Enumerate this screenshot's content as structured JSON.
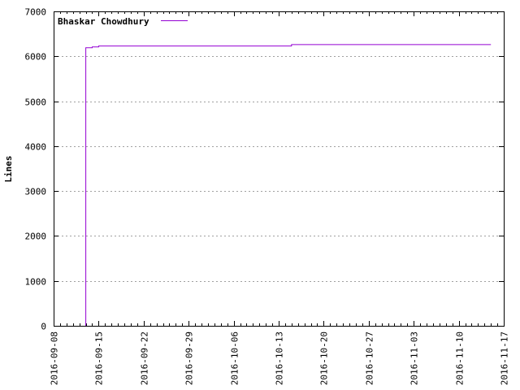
{
  "chart_data": {
    "type": "line",
    "ylabel": "Lines",
    "xlabel": "",
    "title": "",
    "x_axis_type": "date",
    "xlim": [
      "2016-09-08",
      "2016-11-17"
    ],
    "ylim": [
      0,
      7000
    ],
    "x_ticks": [
      "2016-09-08",
      "2016-09-15",
      "2016-09-22",
      "2016-09-29",
      "2016-10-06",
      "2016-10-13",
      "2016-10-20",
      "2016-10-27",
      "2016-11-03",
      "2016-11-10",
      "2016-11-17"
    ],
    "y_ticks": [
      0,
      1000,
      2000,
      3000,
      4000,
      5000,
      6000,
      7000
    ],
    "grid": true,
    "legend_position": "top-left",
    "series": [
      {
        "name": "Bhaskar Chowdhury",
        "color": "#9400d3",
        "step": true,
        "points": [
          {
            "x": "2016-09-13",
            "y": 0
          },
          {
            "x": "2016-09-13",
            "y": 6190
          },
          {
            "x": "2016-09-14",
            "y": 6210
          },
          {
            "x": "2016-09-15",
            "y": 6230
          },
          {
            "x": "2016-10-15",
            "y": 6260
          },
          {
            "x": "2016-11-15",
            "y": 6260
          }
        ]
      }
    ]
  }
}
